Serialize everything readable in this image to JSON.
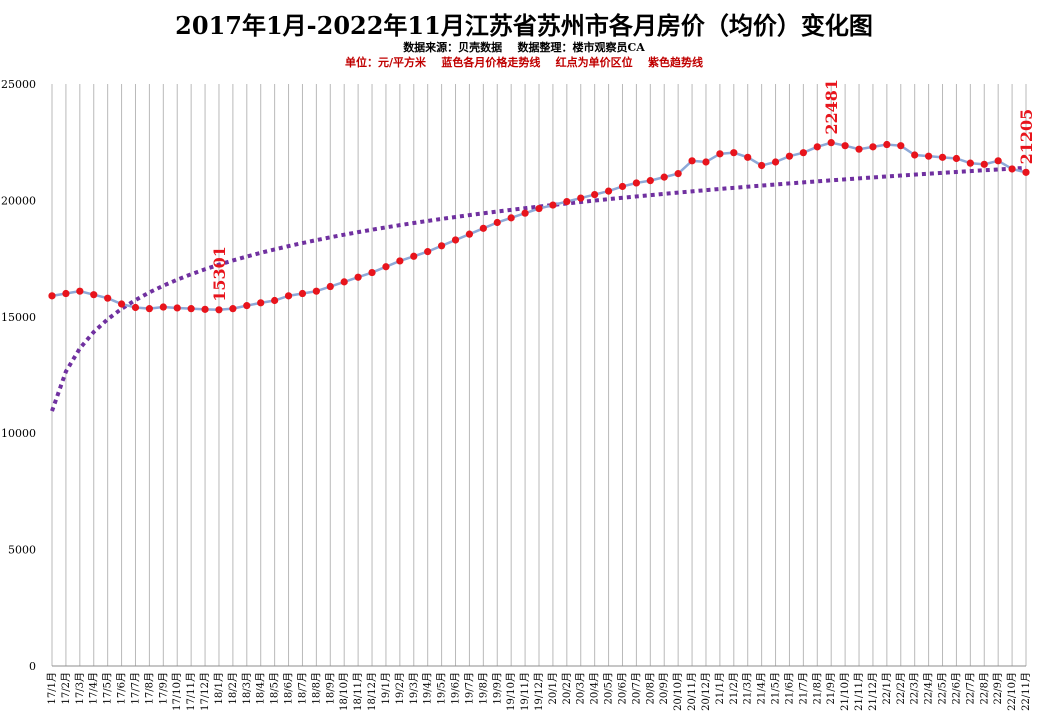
{
  "title": "2017年1月-2022年11月江苏省苏州市各月房价（均价）变化图",
  "subtitle": "数据来源：贝壳数据    数据整理：楼市观察员CA",
  "note": "单位：元/平方米    蓝色各月价格走势线    红点为单价区位    紫色趋势线",
  "colors": {
    "price_line": "#8ea9d8",
    "price_points": "#e8141c",
    "trend_line": "#7030a0",
    "annotation": "#e8141c",
    "grid": "#b9b9b9",
    "note": "#c00000"
  },
  "chart_data": {
    "type": "line",
    "ylim": [
      0,
      25000
    ],
    "yticks": [
      "0",
      "5000",
      "10000",
      "15000",
      "20000",
      "25000"
    ],
    "grid": "vertical lines at each month",
    "x": [
      "17/1月",
      "17/2月",
      "17/3月",
      "17/4月",
      "17/5月",
      "17/6月",
      "17/7月",
      "17/8月",
      "17/9月",
      "17/10月",
      "17/11月",
      "17/12月",
      "18/1月",
      "18/2月",
      "18/3月",
      "18/4月",
      "18/5月",
      "18/6月",
      "18/7月",
      "18/8月",
      "18/9月",
      "18/10月",
      "18/11月",
      "18/12月",
      "19/1月",
      "19/2月",
      "19/3月",
      "19/4月",
      "19/5月",
      "19/6月",
      "19/7月",
      "19/8月",
      "19/9月",
      "19/10月",
      "19/11月",
      "19/12月",
      "20/1月",
      "20/2月",
      "20/3月",
      "20/4月",
      "20/5月",
      "20/6月",
      "20/7月",
      "20/8月",
      "20/9月",
      "20/10月",
      "20/11月",
      "20/12月",
      "21/1月",
      "21/2月",
      "21/3月",
      "21/4月",
      "21/5月",
      "21/6月",
      "21/7月",
      "21/8月",
      "21/9月",
      "21/10月",
      "21/11月",
      "21/12月",
      "22/1月",
      "22/2月",
      "22/3月",
      "22/4月",
      "22/5月",
      "22/6月",
      "22/7月",
      "22/8月",
      "22/9月",
      "22/10月",
      "22/11月"
    ],
    "series": [
      {
        "values": [
          15900,
          16000,
          16100,
          15950,
          15800,
          15550,
          15400,
          15350,
          15420,
          15380,
          15350,
          15320,
          15301,
          15350,
          15480,
          15600,
          15700,
          15900,
          16000,
          16100,
          16300,
          16500,
          16700,
          16900,
          17150,
          17400,
          17600,
          17800,
          18050,
          18300,
          18550,
          18800,
          19050,
          19250,
          19450,
          19650,
          19800,
          19950,
          20100,
          20250,
          20400,
          20600,
          20750,
          20850,
          21000,
          21150,
          21700,
          21650,
          22000,
          22050,
          21850,
          21500,
          21650,
          21900,
          22050,
          22300,
          22481,
          22350,
          22200,
          22300,
          22400,
          22350,
          21950,
          21900,
          21850,
          21800,
          21600,
          21550,
          21700,
          21350,
          21205
        ]
      }
    ],
    "trend": {
      "type": "logarithmic",
      "start_value": 10950,
      "end_value": 21400
    },
    "annotations": [
      {
        "x": "18/1月",
        "label": "15301"
      },
      {
        "x": "21/9月",
        "label": "22481"
      },
      {
        "x": "22/11月",
        "label": "21205"
      }
    ]
  }
}
